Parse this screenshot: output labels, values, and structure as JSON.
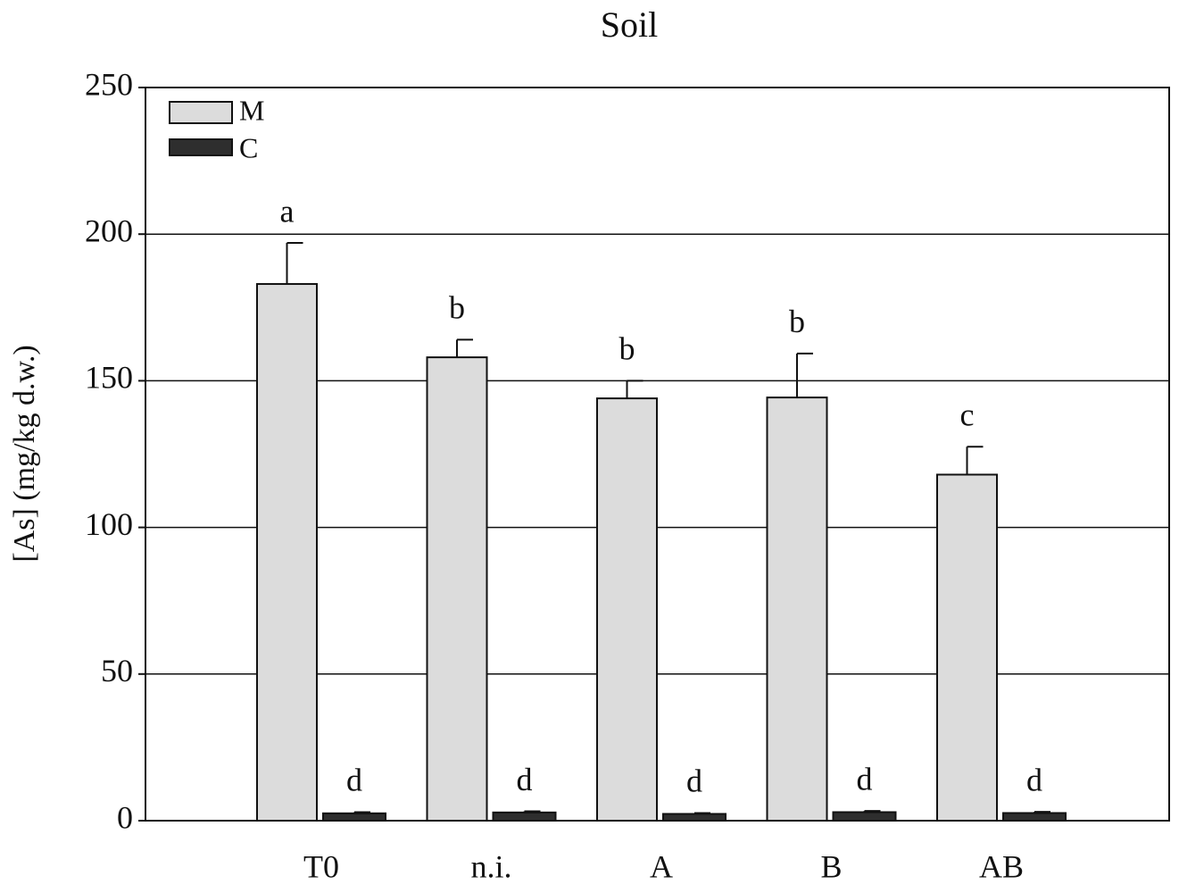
{
  "chart_data": {
    "type": "bar",
    "title": "Soil",
    "ylabel": "[As] (mg/kg d.w.)",
    "categories": [
      "T0",
      "n.i.",
      "A",
      "B",
      "AB"
    ],
    "series": [
      {
        "name": "M",
        "color": "#dcdcdc",
        "values": [
          183,
          158,
          144,
          144.3,
          118
        ],
        "errors": [
          14,
          6,
          6,
          15,
          9.5
        ],
        "letters": [
          "a",
          "b",
          "b",
          "b",
          "c"
        ]
      },
      {
        "name": "C",
        "color": "#2e2e2e",
        "values": [
          2.5,
          2.8,
          2.3,
          2.9,
          2.6
        ],
        "errors": [
          0.4,
          0.4,
          0.3,
          0.4,
          0.4
        ],
        "letters": [
          "d",
          "d",
          "d",
          "d",
          "d"
        ]
      }
    ],
    "ylim": [
      0,
      250
    ],
    "yticks": [
      0,
      50,
      100,
      150,
      200,
      250
    ],
    "grid": true,
    "legend": "top-left"
  }
}
